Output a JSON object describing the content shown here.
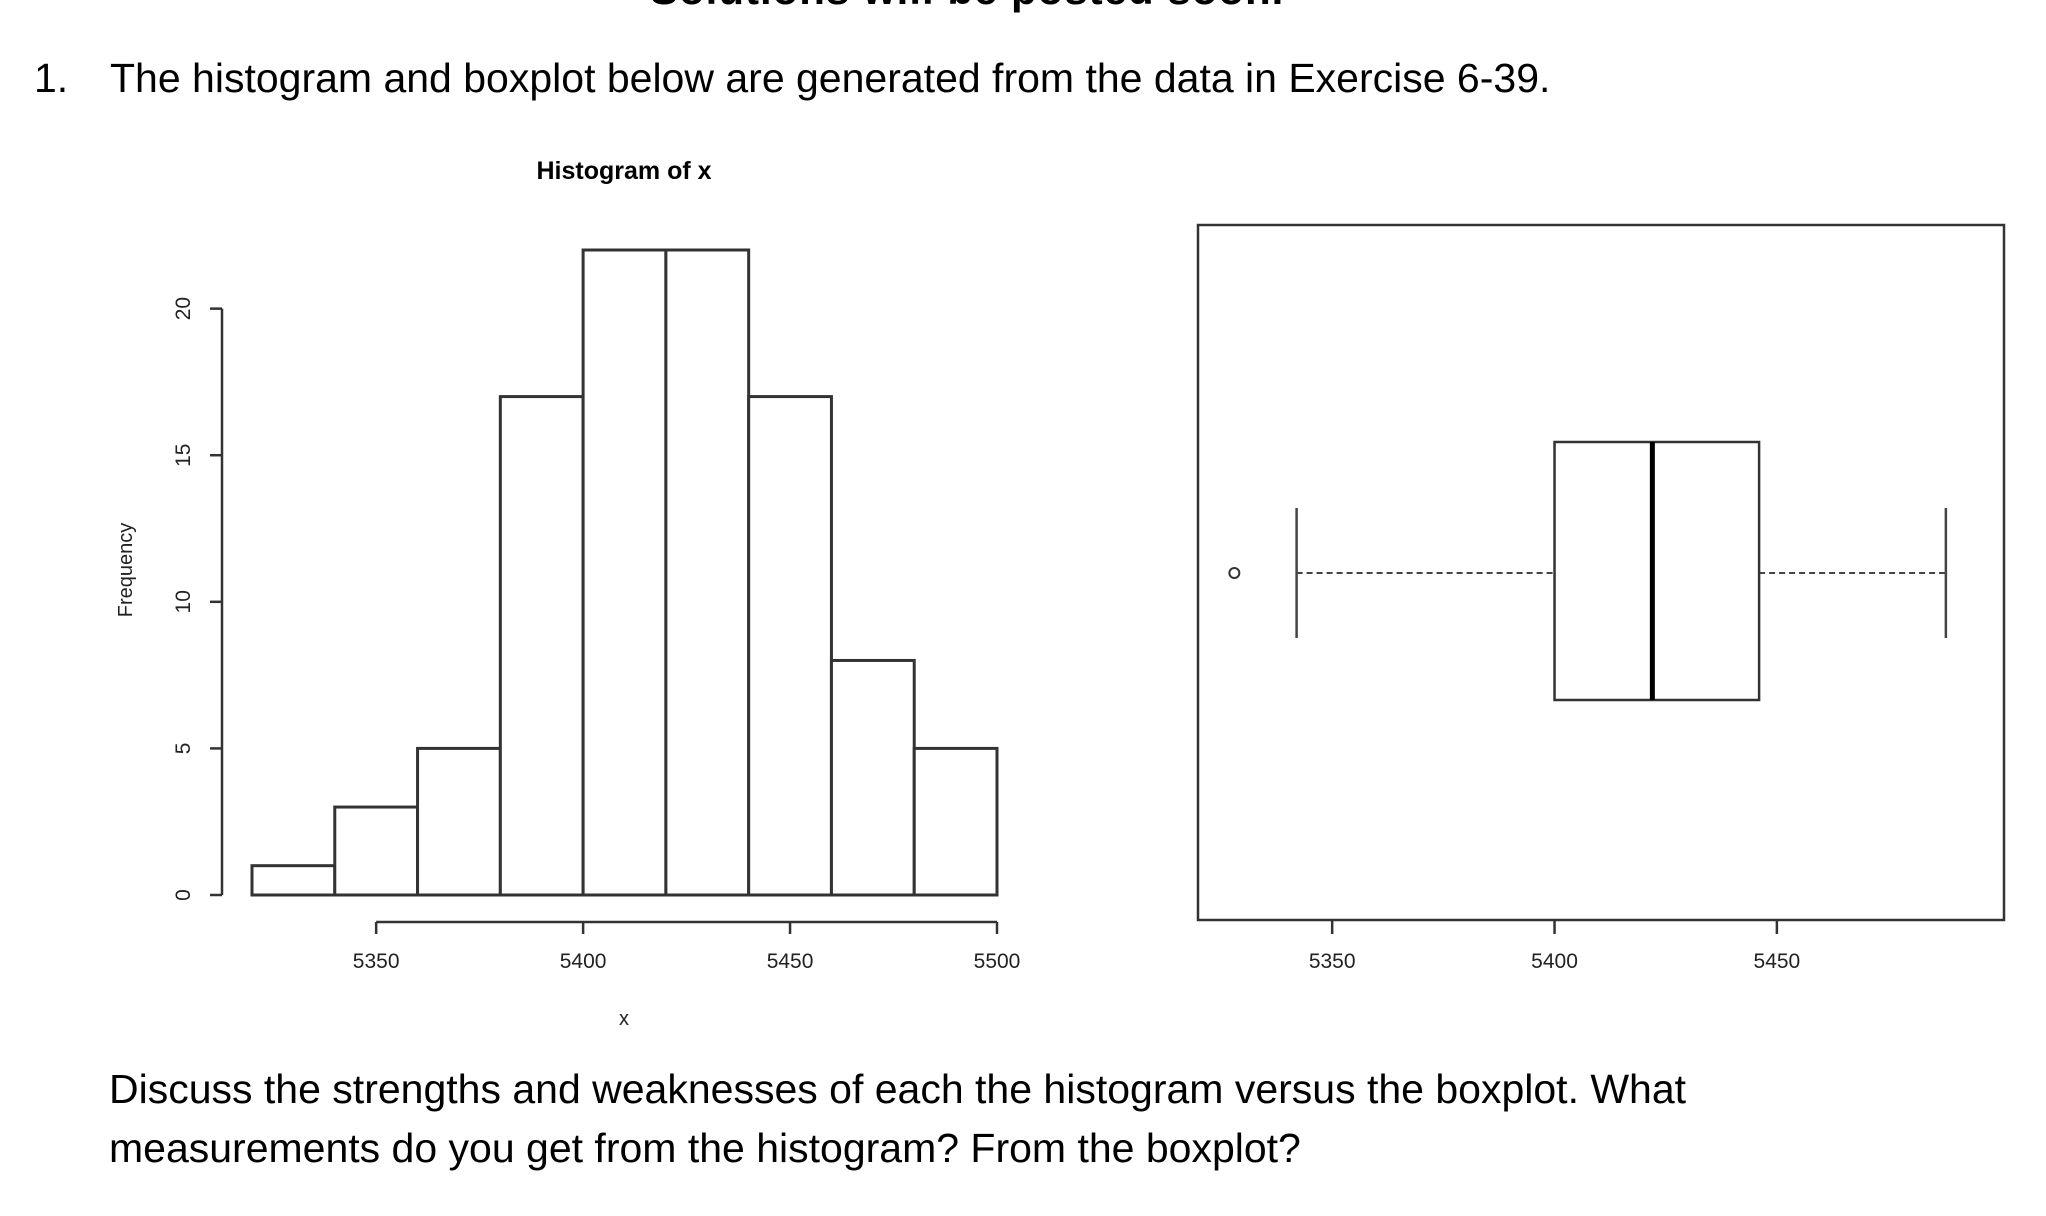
{
  "document": {
    "cut_heading": "Solutions will be posted soon.",
    "question_number": "1.",
    "question_text": "The histogram and boxplot below are generated from the data in Exercise 6-39.",
    "discussion_line1": "Discuss the strengths and weaknesses of each the histogram versus the boxplot.  What",
    "discussion_line2": "measurements do you get from the histogram?  From the boxplot?"
  },
  "chart_data": [
    {
      "type": "bar",
      "subtype": "histogram",
      "title": "Histogram of x",
      "xlabel": "x",
      "ylabel": "Frequency",
      "bin_edges": [
        5320,
        5340,
        5360,
        5380,
        5400,
        5420,
        5440,
        5460,
        5480,
        5500
      ],
      "values": [
        1,
        3,
        5,
        17,
        22,
        22,
        17,
        8,
        5
      ],
      "x_ticks": [
        5350,
        5400,
        5450,
        5500
      ],
      "y_ticks": [
        0,
        5,
        10,
        15,
        20
      ],
      "xlim": [
        5320,
        5500
      ],
      "ylim": [
        0,
        22
      ],
      "grid": false,
      "colors": {
        "bar_fill": "#ffffff",
        "bar_stroke": "#333333",
        "axis": "#333333"
      }
    },
    {
      "type": "boxplot",
      "orientation": "horizontal",
      "xlim": [
        5325,
        5495
      ],
      "x_ticks": [
        5350,
        5400,
        5450
      ],
      "whisker_low": 5342,
      "q1": 5400,
      "median": 5422,
      "q3": 5446,
      "whisker_high": 5488,
      "outliers": [
        5328
      ],
      "grid": false,
      "colors": {
        "box_stroke": "#333333",
        "median": "#000000",
        "whisker": "#444444"
      }
    }
  ]
}
